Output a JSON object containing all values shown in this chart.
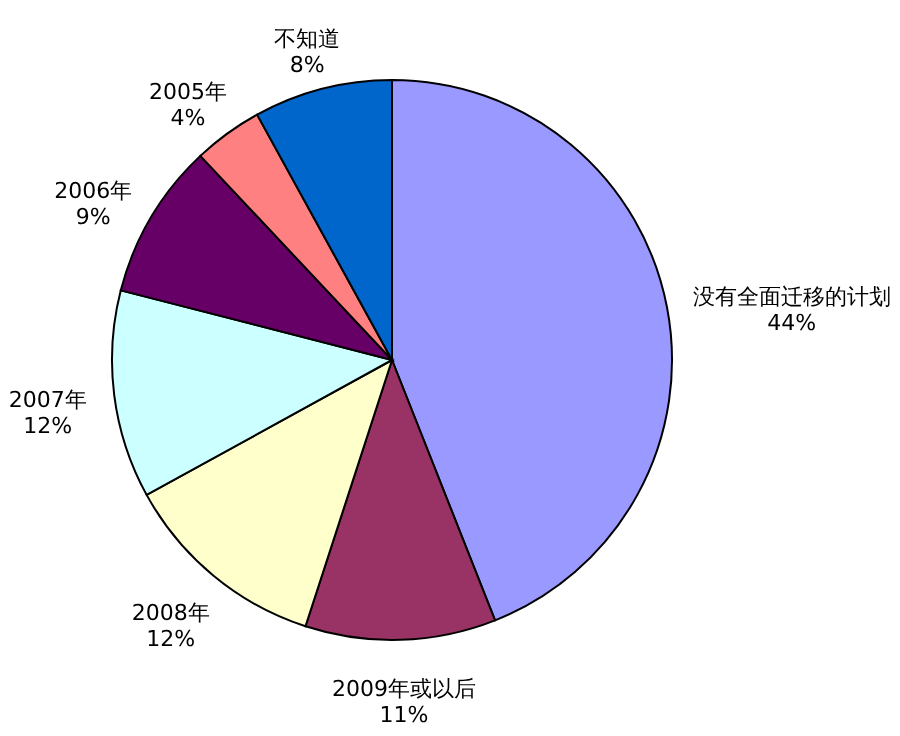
{
  "chart_data": {
    "type": "pie",
    "categories": [
      "没有全面迁移的计划",
      "2009年或以后",
      "2008年",
      "2007年",
      "2006年",
      "2005年",
      "不知道"
    ],
    "values": [
      44,
      11,
      12,
      12,
      9,
      4,
      8
    ],
    "value_labels": [
      "44%",
      "11%",
      "12%",
      "12%",
      "9%",
      "4%",
      "8%"
    ],
    "colors": [
      "#9999ff",
      "#993366",
      "#ffffcc",
      "#ccffff",
      "#660066",
      "#ff8080",
      "#0066cc"
    ]
  }
}
